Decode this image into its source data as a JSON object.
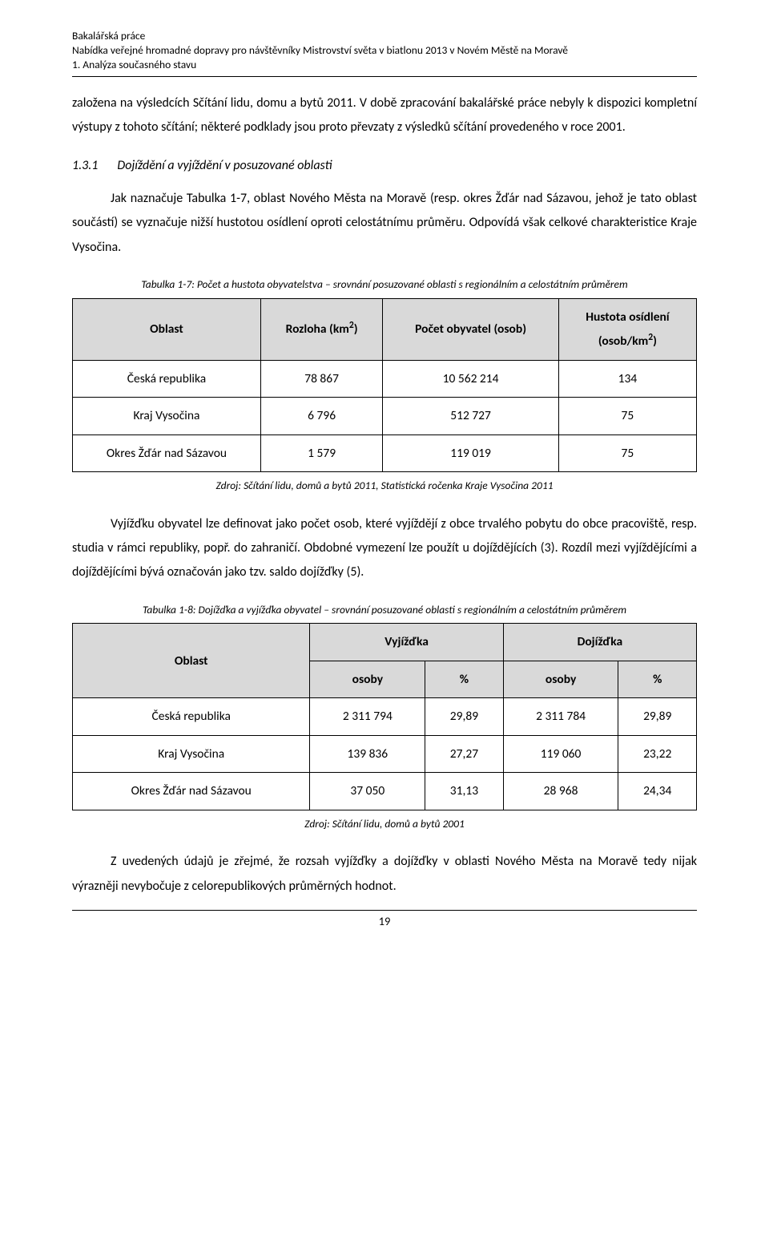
{
  "header": {
    "line1": "Bakalářská práce",
    "line2": "Nabídka veřejné hromadné dopravy pro návštěvníky Mistrovství světa v biatlonu 2013 v Novém Městě na Moravě",
    "line3": "1. Analýza současného stavu"
  },
  "para1": "založena na výsledcích Sčítání lidu, domu a bytů 2011. V době zpracování bakalářské práce nebyly k dispozici kompletní výstupy z tohoto sčítání; některé podklady jsou proto převzaty z výsledků sčítání provedeného v roce 2001.",
  "section": {
    "num": "1.3.1",
    "title": "Dojíždění a vyjíždění v posuzované oblasti"
  },
  "para2": "Jak naznačuje Tabulka 1-7, oblast Nového Města na Moravě (resp. okres Žďár nad Sázavou, jehož je tato oblast součástí) se vyznačuje nižší hustotou osídlení oproti celostátnímu průměru. Odpovídá však celkové charakteristice Kraje Vysočina.",
  "table1": {
    "caption": "Tabulka 1-7: Počet a hustota obyvatelstva – srovnání posuzované oblasti s regionálním a celostátním průměrem",
    "headers": {
      "c1": "Oblast",
      "c2a": "Rozloha (km",
      "c2b": ")",
      "c3": "Počet obyvatel (osob)",
      "c4a": "Hustota osídlení",
      "c4b_pre": "(osob/km",
      "c4b_post": ")"
    },
    "rows": [
      {
        "label": "Česká republika",
        "area": "78 867",
        "pop": "10 562 214",
        "dens": "134"
      },
      {
        "label": "Kraj Vysočina",
        "area": "6 796",
        "pop": "512 727",
        "dens": "75"
      },
      {
        "label": "Okres Žďár nad Sázavou",
        "area": "1 579",
        "pop": "119 019",
        "dens": "75"
      }
    ],
    "source": "Zdroj: Sčítání lidu, domů a bytů 2011, Statistická ročenka Kraje Vysočina 2011"
  },
  "para3": "Vyjížďku obyvatel lze definovat jako počet osob, které vyjíždějí z obce trvalého pobytu do obce pracoviště, resp. studia v rámci republiky, popř. do zahraničí. Obdobné vymezení lze použít u dojíždějících (3). Rozdíl mezi vyjíždějícími a dojíždějícími bývá označován jako tzv. saldo dojížďky (5).",
  "table2": {
    "caption": "Tabulka 1-8: Dojížďka a vyjížďka obyvatel – srovnání posuzované oblasti s regionálním a celostátním průměrem",
    "headers": {
      "c1": "Oblast",
      "c2": "Vyjížďka",
      "c3": "Dojížďka",
      "sub_osoby": "osoby",
      "sub_pct": "%"
    },
    "rows": [
      {
        "label": "Česká republika",
        "v_osoby": "2 311 794",
        "v_pct": "29,89",
        "d_osoby": "2 311 784",
        "d_pct": "29,89"
      },
      {
        "label": "Kraj Vysočina",
        "v_osoby": "139 836",
        "v_pct": "27,27",
        "d_osoby": "119 060",
        "d_pct": "23,22"
      },
      {
        "label": "Okres Žďár nad Sázavou",
        "v_osoby": "37 050",
        "v_pct": "31,13",
        "d_osoby": "28 968",
        "d_pct": "24,34"
      }
    ],
    "source": "Zdroj: Sčítání lidu, domů a bytů 2001"
  },
  "para4": "Z uvedených údajů je zřejmé, že rozsah vyjížďky a dojížďky v oblasti Nového Města na Moravě  tedy  nijak  výrazněji  nevybočuje  z celorepublikových  průměrných  hodnot.",
  "page_number": "19",
  "colors": {
    "text": "#000000",
    "background": "#ffffff",
    "table_header_bg": "#d9d9d9",
    "border": "#000000",
    "rule": "#000000"
  },
  "typography": {
    "body_fontsize": 16,
    "header_fontsize": 13.5,
    "caption_fontsize": 13.5,
    "table_fontsize": 15.5,
    "font_family": "Calibri"
  }
}
